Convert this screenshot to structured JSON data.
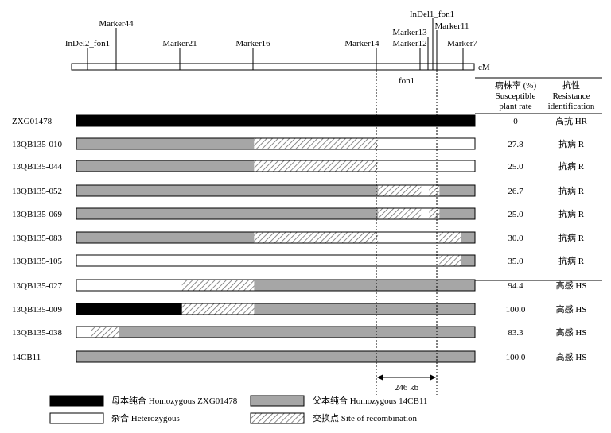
{
  "map": {
    "unit": "cM",
    "markers": [
      {
        "name": "InDel2_fon1"
      },
      {
        "name": "Marker44"
      },
      {
        "name": "Marker21"
      },
      {
        "name": "Marker16"
      },
      {
        "name": "Marker14"
      },
      {
        "name": "Marker13"
      },
      {
        "name": "Marker12"
      },
      {
        "name": "InDel1_fon1"
      },
      {
        "name": "Marker11"
      },
      {
        "name": "Marker7"
      }
    ],
    "gene_label": "fon1",
    "interval_label": "246 kb"
  },
  "table_header": {
    "rate_cn": "病株率 (%)",
    "rate_en1": "Susceptible",
    "rate_en2": "plant rate",
    "res_cn": "抗性",
    "res_en1": "Resistance",
    "res_en2": "identification"
  },
  "lines": [
    {
      "name": "ZXG01478",
      "rate": "0",
      "resistance": "高抗 HR",
      "segments": [
        {
          "from": 0,
          "to": 1,
          "type": "maternal"
        }
      ]
    },
    {
      "name": "13QB135-010",
      "rate": "27.8",
      "resistance": "抗病 R",
      "segments": [
        {
          "from": 0,
          "to": 0.446,
          "type": "paternal"
        },
        {
          "from": 0.446,
          "to": 0.757,
          "type": "recombination"
        },
        {
          "from": 0.757,
          "to": 1,
          "type": "heterozygous"
        }
      ]
    },
    {
      "name": "13QB135-044",
      "rate": "25.0",
      "resistance": "抗病 R",
      "segments": [
        {
          "from": 0,
          "to": 0.446,
          "type": "paternal"
        },
        {
          "from": 0.446,
          "to": 0.757,
          "type": "recombination"
        },
        {
          "from": 0.757,
          "to": 1,
          "type": "heterozygous"
        }
      ]
    },
    {
      "name": "13QB135-052",
      "rate": "26.7",
      "resistance": "抗病 R",
      "segments": [
        {
          "from": 0,
          "to": 0.757,
          "type": "paternal"
        },
        {
          "from": 0.757,
          "to": 0.865,
          "type": "recombination"
        },
        {
          "from": 0.865,
          "to": 0.885,
          "type": "heterozygous"
        },
        {
          "from": 0.885,
          "to": 0.911,
          "type": "recombination"
        },
        {
          "from": 0.911,
          "to": 1,
          "type": "paternal"
        }
      ]
    },
    {
      "name": "13QB135-069",
      "rate": "25.0",
      "resistance": "抗病 R",
      "segments": [
        {
          "from": 0,
          "to": 0.757,
          "type": "paternal"
        },
        {
          "from": 0.757,
          "to": 0.865,
          "type": "recombination"
        },
        {
          "from": 0.865,
          "to": 0.885,
          "type": "heterozygous"
        },
        {
          "from": 0.885,
          "to": 0.911,
          "type": "recombination"
        },
        {
          "from": 0.911,
          "to": 1,
          "type": "paternal"
        }
      ]
    },
    {
      "name": "13QB135-083",
      "rate": "30.0",
      "resistance": "抗病 R",
      "segments": [
        {
          "from": 0,
          "to": 0.446,
          "type": "paternal"
        },
        {
          "from": 0.446,
          "to": 0.757,
          "type": "recombination"
        },
        {
          "from": 0.757,
          "to": 0.911,
          "type": "heterozygous"
        },
        {
          "from": 0.911,
          "to": 0.964,
          "type": "recombination"
        },
        {
          "from": 0.964,
          "to": 1,
          "type": "paternal"
        }
      ]
    },
    {
      "name": "13QB135-105",
      "rate": "35.0",
      "resistance": "抗病 R",
      "segments": [
        {
          "from": 0,
          "to": 0.911,
          "type": "heterozygous"
        },
        {
          "from": 0.911,
          "to": 0.964,
          "type": "recombination"
        },
        {
          "from": 0.964,
          "to": 1,
          "type": "paternal"
        }
      ]
    },
    {
      "name": "13QB135-027",
      "rate": "94.4",
      "resistance": "高感 HS",
      "segments": [
        {
          "from": 0,
          "to": 0.265,
          "type": "heterozygous"
        },
        {
          "from": 0.265,
          "to": 0.446,
          "type": "recombination"
        },
        {
          "from": 0.446,
          "to": 1,
          "type": "paternal"
        }
      ]
    },
    {
      "name": "13QB135-009",
      "rate": "100.0",
      "resistance": "高感 HS",
      "segments": [
        {
          "from": 0,
          "to": 0.265,
          "type": "maternal"
        },
        {
          "from": 0.265,
          "to": 0.446,
          "type": "recombination"
        },
        {
          "from": 0.446,
          "to": 1,
          "type": "paternal"
        }
      ]
    },
    {
      "name": "13QB135-038",
      "rate": "83.3",
      "resistance": "高感 HS",
      "segments": [
        {
          "from": 0,
          "to": 0.036,
          "type": "heterozygous"
        },
        {
          "from": 0.036,
          "to": 0.106,
          "type": "recombination"
        },
        {
          "from": 0.106,
          "to": 1,
          "type": "paternal"
        }
      ]
    },
    {
      "name": "14CB11",
      "rate": "100.0",
      "resistance": "高感 HS",
      "segments": [
        {
          "from": 0,
          "to": 1,
          "type": "paternal"
        }
      ]
    }
  ],
  "legend": [
    {
      "type": "maternal",
      "label": "母本纯合 Homozygous ZXG01478"
    },
    {
      "type": "paternal",
      "label": "父本纯合 Homozygous 14CB11"
    },
    {
      "type": "heterozygous",
      "label": "杂合 Heterozygous"
    },
    {
      "type": "recombination",
      "label": "交换点 Site of recombination"
    }
  ],
  "colors": {
    "maternal": "#000000",
    "paternal": "#a6a6a6",
    "heterozygous": "#ffffff",
    "recombination_stripe": "#7a7a7a",
    "outline": "#000000"
  }
}
